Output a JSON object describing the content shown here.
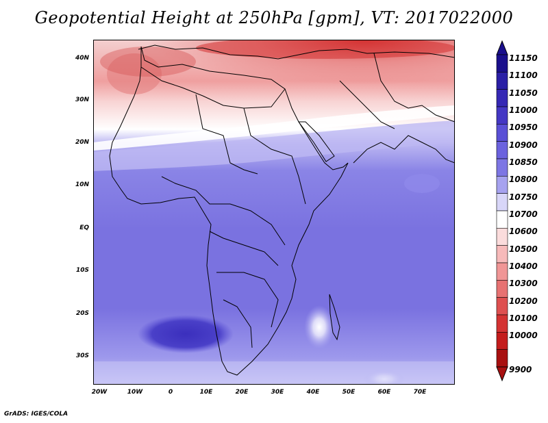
{
  "title": "Geopotential Height at 250hPa [gpm], VT: 2017022000",
  "footer": "GrADS: IGES/COLA",
  "map": {
    "lat_labels": [
      "40N",
      "30N",
      "20N",
      "10N",
      "EQ",
      "10S",
      "20S",
      "30S"
    ],
    "lon_labels": [
      "20W",
      "10W",
      "0",
      "10E",
      "20E",
      "30E",
      "40E",
      "50E",
      "60E",
      "70E"
    ]
  },
  "colorbar": {
    "levels": [
      "11150",
      "11100",
      "11050",
      "11000",
      "10950",
      "10900",
      "10850",
      "10800",
      "10750",
      "10700",
      "10600",
      "10500",
      "10400",
      "10300",
      "10200",
      "10100",
      "10000",
      "9900"
    ],
    "colors": [
      "#1a0f8c",
      "#2a1fa6",
      "#3528b5",
      "#4437c4",
      "#5a50d6",
      "#6b62de",
      "#7d76e4",
      "#a6a2ef",
      "#d8d6f8",
      "#ffffff",
      "#fbdcdc",
      "#f7baba",
      "#f09696",
      "#e77272",
      "#de5050",
      "#d43232",
      "#c41c1c",
      "#a81010"
    ]
  }
}
